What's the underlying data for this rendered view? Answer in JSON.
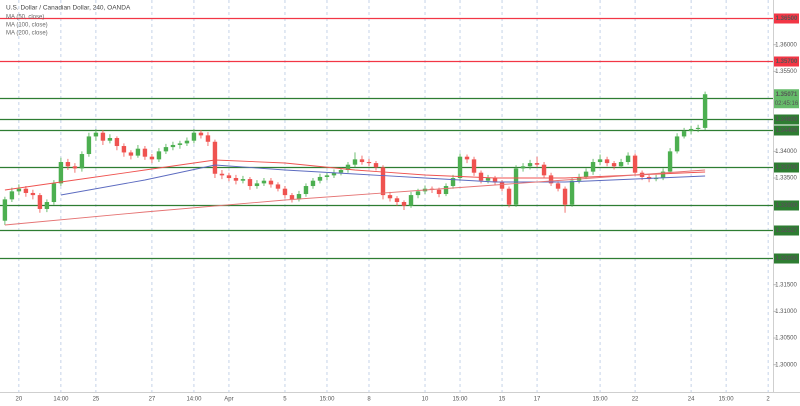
{
  "chart_data": {
    "type": "candlestick",
    "title": "U.S. Dollar / Canadian Dollar, 240, OANDA",
    "up_color": "#4caf50",
    "down_color": "#ef5350",
    "xlim": [
      -0.7,
      109.7
    ],
    "ylim": [
      1.29488,
      1.36838
    ],
    "xticks": [
      {
        "value": 2,
        "label": "20"
      },
      {
        "value": 8,
        "label": "14:00"
      },
      {
        "value": 13,
        "label": "25"
      },
      {
        "value": 21,
        "label": "27"
      },
      {
        "value": 27,
        "label": "14:00"
      },
      {
        "value": 32,
        "label": "Apr"
      },
      {
        "value": 40,
        "label": "5"
      },
      {
        "value": 46,
        "label": "15:00"
      },
      {
        "value": 52,
        "label": "8"
      },
      {
        "value": 60,
        "label": "10"
      },
      {
        "value": 65,
        "label": "15:00"
      },
      {
        "value": 71,
        "label": "15"
      },
      {
        "value": 76,
        "label": "17"
      },
      {
        "value": 85,
        "label": "15:00"
      },
      {
        "value": 90,
        "label": "22"
      },
      {
        "value": 98,
        "label": "24"
      },
      {
        "value": 103,
        "label": "15:00"
      },
      {
        "value": 109,
        "label": "2"
      }
    ],
    "yticks": [
      {
        "value": 1.36,
        "label": "1.36000"
      },
      {
        "value": 1.355,
        "label": "1.35500"
      },
      {
        "value": 1.34,
        "label": "1.34000"
      },
      {
        "value": 1.335,
        "label": "1.33500"
      },
      {
        "value": 1.315,
        "label": "1.31500"
      },
      {
        "value": 1.31,
        "label": "1.31000"
      },
      {
        "value": 1.305,
        "label": "1.30500"
      },
      {
        "value": 1.3,
        "label": "1.30000"
      }
    ],
    "levels": [
      {
        "value": 1.365,
        "label": "1.36500",
        "color": "#f23645"
      },
      {
        "value": 1.357,
        "label": "1.35700",
        "color": "#f23645"
      },
      {
        "value": 1.35,
        "label": "1.35000",
        "color": "#2e7d32"
      },
      {
        "value": 1.346,
        "label": "1.34600",
        "color": "#2e7d32"
      },
      {
        "value": 1.344,
        "label": "1.34400",
        "color": "#2e7d32"
      },
      {
        "value": 1.337,
        "label": "1.33700",
        "color": "#2e7d32"
      },
      {
        "value": 1.33,
        "label": "1.33000",
        "color": "#2e7d32"
      },
      {
        "value": 1.32527,
        "label": "1.32527",
        "color": "#2e7d32"
      },
      {
        "value": 1.32,
        "label": "1.32000",
        "color": "#2e7d32"
      }
    ],
    "last_price": {
      "value": 1.35071,
      "label": "1.35071",
      "countdown": "02:45:16",
      "color": "#66bb6a"
    },
    "candles": [
      [
        1.327,
        1.3315,
        1.3262,
        1.331
      ],
      [
        1.331,
        1.3332,
        1.3305,
        1.3325
      ],
      [
        1.3325,
        1.3338,
        1.3318,
        1.333
      ],
      [
        1.333,
        1.3335,
        1.3315,
        1.3322
      ],
      [
        1.3322,
        1.3328,
        1.331,
        1.3318
      ],
      [
        1.3318,
        1.3322,
        1.3285,
        1.3292
      ],
      [
        1.3292,
        1.331,
        1.3286,
        1.3305
      ],
      [
        1.3305,
        1.3346,
        1.33,
        1.334
      ],
      [
        1.334,
        1.3388,
        1.3335,
        1.338
      ],
      [
        1.338,
        1.3386,
        1.3365,
        1.3372
      ],
      [
        1.3372,
        1.3378,
        1.336,
        1.3368
      ],
      [
        1.3368,
        1.34,
        1.3362,
        1.3395
      ],
      [
        1.3395,
        1.3435,
        1.339,
        1.3428
      ],
      [
        1.3428,
        1.3442,
        1.342,
        1.3435
      ],
      [
        1.3435,
        1.344,
        1.3412,
        1.342
      ],
      [
        1.342,
        1.3432,
        1.3415,
        1.3425
      ],
      [
        1.3425,
        1.3428,
        1.3402,
        1.341
      ],
      [
        1.341,
        1.3415,
        1.339,
        1.3398
      ],
      [
        1.3398,
        1.3402,
        1.3385,
        1.3392
      ],
      [
        1.3392,
        1.3412,
        1.3388,
        1.3405
      ],
      [
        1.3405,
        1.341,
        1.3384,
        1.339
      ],
      [
        1.339,
        1.3395,
        1.3378,
        1.3385
      ],
      [
        1.3385,
        1.3406,
        1.338,
        1.34
      ],
      [
        1.34,
        1.3414,
        1.3395,
        1.3408
      ],
      [
        1.3408,
        1.3418,
        1.3402,
        1.3412
      ],
      [
        1.3412,
        1.342,
        1.3405,
        1.3415
      ],
      [
        1.3415,
        1.3426,
        1.341,
        1.342
      ],
      [
        1.342,
        1.3442,
        1.3415,
        1.3435
      ],
      [
        1.3435,
        1.344,
        1.3424,
        1.343
      ],
      [
        1.343,
        1.3436,
        1.341,
        1.3418
      ],
      [
        1.3418,
        1.3422,
        1.335,
        1.3358
      ],
      [
        1.3358,
        1.3365,
        1.3348,
        1.3355
      ],
      [
        1.3355,
        1.336,
        1.3344,
        1.335
      ],
      [
        1.335,
        1.3356,
        1.3338,
        1.3345
      ],
      [
        1.3345,
        1.3354,
        1.334,
        1.3348
      ],
      [
        1.3348,
        1.3352,
        1.3328,
        1.3335
      ],
      [
        1.3335,
        1.3346,
        1.333,
        1.334
      ],
      [
        1.334,
        1.335,
        1.3335,
        1.3345
      ],
      [
        1.3345,
        1.335,
        1.3332,
        1.3338
      ],
      [
        1.3338,
        1.3342,
        1.3325,
        1.333
      ],
      [
        1.333,
        1.3335,
        1.3312,
        1.3318
      ],
      [
        1.3318,
        1.3322,
        1.3304,
        1.331
      ],
      [
        1.331,
        1.3326,
        1.3306,
        1.332
      ],
      [
        1.332,
        1.334,
        1.3315,
        1.3335
      ],
      [
        1.3335,
        1.335,
        1.333,
        1.3345
      ],
      [
        1.3345,
        1.3358,
        1.334,
        1.3352
      ],
      [
        1.3352,
        1.336,
        1.3346,
        1.3355
      ],
      [
        1.3355,
        1.3366,
        1.335,
        1.336
      ],
      [
        1.336,
        1.337,
        1.3355,
        1.3365
      ],
      [
        1.3365,
        1.338,
        1.336,
        1.3375
      ],
      [
        1.3375,
        1.3398,
        1.337,
        1.3385
      ],
      [
        1.3385,
        1.3392,
        1.3375,
        1.338
      ],
      [
        1.338,
        1.3386,
        1.3372,
        1.3378
      ],
      [
        1.3378,
        1.3382,
        1.3364,
        1.337
      ],
      [
        1.337,
        1.3374,
        1.331,
        1.3318
      ],
      [
        1.3318,
        1.3324,
        1.3306,
        1.3312
      ],
      [
        1.3312,
        1.3316,
        1.3298,
        1.3305
      ],
      [
        1.3305,
        1.3308,
        1.329,
        1.3298
      ],
      [
        1.3298,
        1.3324,
        1.3294,
        1.3318
      ],
      [
        1.3318,
        1.333,
        1.3312,
        1.3325
      ],
      [
        1.3325,
        1.3336,
        1.332,
        1.333
      ],
      [
        1.333,
        1.3334,
        1.3322,
        1.3328
      ],
      [
        1.3328,
        1.3332,
        1.3314,
        1.332
      ],
      [
        1.332,
        1.334,
        1.3316,
        1.3335
      ],
      [
        1.3335,
        1.3356,
        1.333,
        1.335
      ],
      [
        1.335,
        1.3396,
        1.3345,
        1.339
      ],
      [
        1.339,
        1.3394,
        1.3378,
        1.3385
      ],
      [
        1.3385,
        1.339,
        1.3354,
        1.336
      ],
      [
        1.336,
        1.3364,
        1.334,
        1.3345
      ],
      [
        1.3345,
        1.3356,
        1.334,
        1.335
      ],
      [
        1.335,
        1.3354,
        1.3336,
        1.3342
      ],
      [
        1.3342,
        1.3346,
        1.3325,
        1.333
      ],
      [
        1.333,
        1.3334,
        1.3295,
        1.33
      ],
      [
        1.33,
        1.3374,
        1.3296,
        1.3368
      ],
      [
        1.3368,
        1.3378,
        1.3362,
        1.3372
      ],
      [
        1.3372,
        1.3384,
        1.3366,
        1.3378
      ],
      [
        1.3378,
        1.339,
        1.337,
        1.3375
      ],
      [
        1.3375,
        1.338,
        1.335,
        1.3355
      ],
      [
        1.3355,
        1.336,
        1.3335,
        1.334
      ],
      [
        1.334,
        1.3344,
        1.3325,
        1.333
      ],
      [
        1.333,
        1.3334,
        1.3285,
        1.33
      ],
      [
        1.33,
        1.335,
        1.3296,
        1.3345
      ],
      [
        1.3345,
        1.3358,
        1.334,
        1.3352
      ],
      [
        1.3352,
        1.3368,
        1.3348,
        1.3362
      ],
      [
        1.3362,
        1.3386,
        1.3356,
        1.338
      ],
      [
        1.338,
        1.3394,
        1.3374,
        1.3385
      ],
      [
        1.3385,
        1.339,
        1.3372,
        1.3378
      ],
      [
        1.3378,
        1.3382,
        1.3366,
        1.3372
      ],
      [
        1.3372,
        1.3386,
        1.3368,
        1.338
      ],
      [
        1.338,
        1.3398,
        1.3375,
        1.3392
      ],
      [
        1.3392,
        1.3396,
        1.3354,
        1.336
      ],
      [
        1.336,
        1.3364,
        1.3346,
        1.3352
      ],
      [
        1.3352,
        1.3356,
        1.3342,
        1.3348
      ],
      [
        1.3348,
        1.3356,
        1.3344,
        1.335
      ],
      [
        1.335,
        1.3368,
        1.3346,
        1.3362
      ],
      [
        1.3362,
        1.3406,
        1.3358,
        1.34
      ],
      [
        1.34,
        1.3434,
        1.3396,
        1.3428
      ],
      [
        1.3428,
        1.3444,
        1.3424,
        1.3438
      ],
      [
        1.3438,
        1.3448,
        1.3432,
        1.3442
      ],
      [
        1.3442,
        1.345,
        1.3436,
        1.3444
      ],
      [
        1.3444,
        1.3512,
        1.344,
        1.35071
      ]
    ],
    "series": [
      {
        "name": "MA (50, close)",
        "color": "#ef5350",
        "x": [
          0,
          10,
          20,
          30,
          40,
          50,
          60,
          70,
          80,
          90,
          100
        ],
        "values": [
          1.33275,
          1.33463,
          1.3365,
          1.33838,
          1.33781,
          1.3365,
          1.33556,
          1.335,
          1.335,
          1.33556,
          1.33613
        ]
      },
      {
        "name": "MA (100, close)",
        "color": "#5c6bc0",
        "x": [
          8,
          20,
          30,
          40,
          50,
          60,
          70,
          80,
          90,
          100
        ],
        "values": [
          1.33181,
          1.33463,
          1.33744,
          1.3365,
          1.33575,
          1.335,
          1.33425,
          1.33425,
          1.33481,
          1.33538
        ]
      },
      {
        "name": "MA (200, close)",
        "color": "#e57373",
        "x": [
          0,
          20,
          40,
          60,
          80,
          100
        ],
        "values": [
          1.32619,
          1.32863,
          1.33088,
          1.33275,
          1.33463,
          1.3365
        ]
      }
    ]
  }
}
